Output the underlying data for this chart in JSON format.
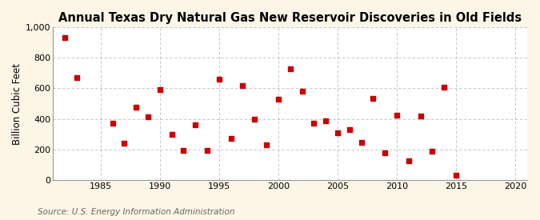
{
  "title": "Annual Texas Dry Natural Gas New Reservoir Discoveries in Old Fields",
  "ylabel": "Billion Cubic Feet",
  "source": "Source: U.S. Energy Information Administration",
  "background_color": "#fdf5e6",
  "plot_bg_color": "#ffffff",
  "years": [
    1982,
    1983,
    1986,
    1987,
    1988,
    1989,
    1990,
    1991,
    1992,
    1993,
    1994,
    1995,
    1996,
    1997,
    1998,
    1999,
    2000,
    2001,
    2002,
    2003,
    2004,
    2005,
    2006,
    2007,
    2008,
    2009,
    2010,
    2011,
    2012,
    2013,
    2014,
    2015
  ],
  "values": [
    930,
    670,
    370,
    240,
    475,
    415,
    590,
    300,
    195,
    360,
    195,
    660,
    275,
    620,
    400,
    230,
    530,
    730,
    580,
    370,
    390,
    310,
    330,
    245,
    535,
    180,
    425,
    125,
    420,
    190,
    605,
    30
  ],
  "marker_color": "#cc0000",
  "marker_size": 16,
  "xlim": [
    1981,
    2021
  ],
  "ylim": [
    0,
    1000
  ],
  "xticks": [
    1985,
    1990,
    1995,
    2000,
    2005,
    2010,
    2015,
    2020
  ],
  "yticks": [
    0,
    200,
    400,
    600,
    800,
    1000
  ],
  "ytick_labels": [
    "0",
    "200",
    "400",
    "600",
    "800",
    "1,000"
  ],
  "grid_color": "#bbbbbb",
  "title_fontsize": 10.5,
  "label_fontsize": 8.5,
  "tick_fontsize": 8,
  "source_fontsize": 7.5
}
